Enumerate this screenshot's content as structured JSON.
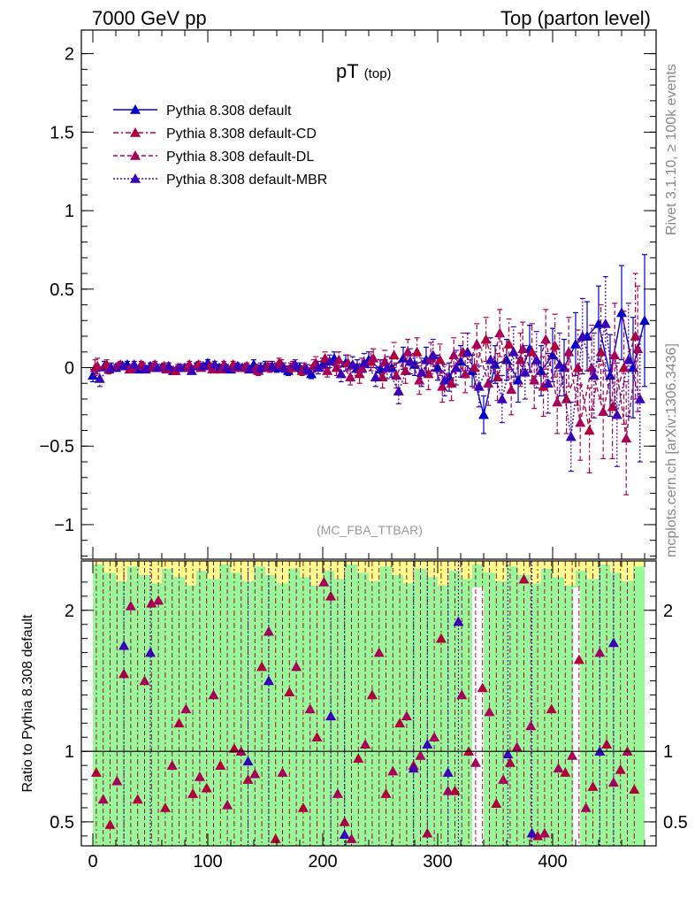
{
  "header": {
    "left": "7000 GeV pp",
    "right": "Top (parton level)"
  },
  "side_labels": {
    "rivet": "Rivet 3.1.10, ≥ 100k events",
    "mcplots": "mcplots.cern.ch [arXiv:1306.3436]"
  },
  "watermark": "(MC_FBA_TTBAR)",
  "colors": {
    "default": "#0000cc",
    "cd": "#b0003c",
    "dl": "#a8005a",
    "mbr": "#3a00b8",
    "band_green": "#98f898",
    "band_yellow": "#ffff8c"
  },
  "chart_data": [
    {
      "type": "scatter",
      "panel": "main",
      "title": "pT",
      "title_sub": "(top)",
      "xlim": [
        -10,
        490
      ],
      "ylim": [
        -1.22,
        2.15
      ],
      "y_ticks": [
        2,
        1.5,
        1,
        0.5,
        0,
        -0.5,
        -1
      ],
      "y_tick_labels": [
        "2",
        "1.5",
        "1",
        "0.5",
        "0",
        "−0.5",
        "−1"
      ],
      "legend": [
        {
          "name": "Pythia 8.308 default",
          "style": "solid",
          "color_key": "default"
        },
        {
          "name": "Pythia 8.308 default-CD",
          "style": "dashdot",
          "color_key": "cd"
        },
        {
          "name": "Pythia 8.308 default-DL",
          "style": "dashed",
          "color_key": "dl"
        },
        {
          "name": "Pythia 8.308 default-MBR",
          "style": "dotted",
          "color_key": "mbr"
        }
      ],
      "series": [
        {
          "name": "Pythia 8.308 default",
          "x": [
            0,
            10,
            20,
            30,
            40,
            50,
            60,
            70,
            80,
            90,
            100,
            110,
            120,
            130,
            140,
            150,
            160,
            170,
            180,
            190,
            200,
            210,
            220,
            230,
            240,
            250,
            260,
            270,
            280,
            290,
            300,
            310,
            320,
            330,
            340,
            350,
            360,
            370,
            380,
            390,
            400,
            410,
            420,
            430,
            440,
            450,
            460,
            470,
            480
          ],
          "y": [
            -0.05,
            0.01,
            0.0,
            0.02,
            -0.01,
            0.01,
            0.0,
            -0.02,
            0.0,
            0.01,
            0.03,
            0.0,
            -0.01,
            0.0,
            0.02,
            0.01,
            0.0,
            -0.02,
            0.0,
            -0.04,
            0.02,
            0.06,
            0.03,
            0.0,
            0.05,
            -0.01,
            0.0,
            0.06,
            0.02,
            0.05,
            0.0,
            -0.06,
            0.04,
            -0.02,
            -0.3,
            0.02,
            0.05,
            -0.08,
            0.12,
            -0.02,
            0.08,
            0.0,
            0.15,
            0.2,
            0.28,
            -0.05,
            0.35,
            0.0,
            0.3
          ],
          "err": [
            0.04,
            0.03,
            0.02,
            0.02,
            0.02,
            0.02,
            0.02,
            0.02,
            0.02,
            0.02,
            0.02,
            0.02,
            0.02,
            0.02,
            0.03,
            0.03,
            0.03,
            0.03,
            0.03,
            0.03,
            0.04,
            0.04,
            0.05,
            0.05,
            0.05,
            0.06,
            0.06,
            0.07,
            0.07,
            0.08,
            0.08,
            0.09,
            0.1,
            0.1,
            0.12,
            0.12,
            0.13,
            0.14,
            0.15,
            0.16,
            0.17,
            0.18,
            0.2,
            0.22,
            0.24,
            0.26,
            0.3,
            0.32,
            0.42
          ]
        },
        {
          "name": "Pythia 8.308 default-CD",
          "x": [
            2,
            12,
            22,
            32,
            42,
            52,
            62,
            72,
            82,
            92,
            102,
            112,
            122,
            132,
            142,
            152,
            162,
            172,
            182,
            192,
            202,
            212,
            222,
            232,
            242,
            252,
            262,
            272,
            282,
            292,
            302,
            312,
            322,
            332,
            342,
            352,
            362,
            372,
            382,
            392,
            402,
            412,
            422,
            432,
            442,
            452,
            462,
            472
          ],
          "y": [
            0.0,
            0.02,
            0.01,
            -0.01,
            0.02,
            0.0,
            0.01,
            -0.02,
            0.0,
            0.02,
            0.01,
            -0.01,
            0.02,
            0.0,
            -0.01,
            0.01,
            0.03,
            0.0,
            -0.02,
            0.01,
            0.06,
            0.0,
            0.03,
            -0.04,
            0.04,
            -0.06,
            0.08,
            -0.02,
            0.1,
            -0.04,
            0.05,
            -0.1,
            0.1,
            0.0,
            0.18,
            -0.06,
            0.15,
            0.05,
            0.1,
            -0.12,
            0.14,
            -0.2,
            0.0,
            -0.4,
            0.1,
            -0.25,
            0.0,
            0.2
          ],
          "err": [
            0.05,
            0.03,
            0.02,
            0.02,
            0.02,
            0.02,
            0.02,
            0.02,
            0.02,
            0.02,
            0.02,
            0.02,
            0.02,
            0.02,
            0.03,
            0.03,
            0.03,
            0.03,
            0.03,
            0.04,
            0.04,
            0.05,
            0.05,
            0.06,
            0.06,
            0.07,
            0.08,
            0.08,
            0.09,
            0.1,
            0.1,
            0.11,
            0.12,
            0.13,
            0.14,
            0.15,
            0.16,
            0.17,
            0.18,
            0.19,
            0.2,
            0.22,
            0.24,
            0.27,
            0.3,
            0.33,
            0.36,
            0.4
          ]
        },
        {
          "name": "Pythia 8.308 default-DL",
          "x": [
            4,
            14,
            24,
            34,
            44,
            54,
            64,
            74,
            84,
            94,
            104,
            114,
            124,
            134,
            144,
            154,
            164,
            174,
            184,
            194,
            204,
            214,
            224,
            234,
            244,
            254,
            264,
            274,
            284,
            294,
            304,
            314,
            324,
            334,
            344,
            354,
            364,
            374,
            384,
            394,
            404,
            414,
            424,
            434,
            444,
            454,
            464,
            474
          ],
          "y": [
            0.01,
            -0.01,
            0.02,
            0.0,
            0.01,
            0.02,
            -0.01,
            0.0,
            0.02,
            0.0,
            -0.01,
            0.02,
            0.0,
            0.01,
            -0.02,
            0.0,
            0.02,
            0.01,
            0.0,
            0.03,
            -0.02,
            0.05,
            -0.06,
            0.0,
            0.06,
            0.04,
            -0.05,
            0.1,
            -0.08,
            0.06,
            -0.12,
            0.08,
            -0.04,
            0.15,
            -0.1,
            0.22,
            -0.14,
            0.12,
            -0.08,
            0.18,
            -0.22,
            0.1,
            -0.35,
            0.0,
            -0.28,
            0.08,
            -0.45,
            0.12
          ],
          "err": [
            0.05,
            0.03,
            0.02,
            0.02,
            0.02,
            0.02,
            0.02,
            0.02,
            0.02,
            0.02,
            0.02,
            0.02,
            0.02,
            0.02,
            0.03,
            0.03,
            0.03,
            0.03,
            0.03,
            0.04,
            0.04,
            0.05,
            0.05,
            0.06,
            0.06,
            0.07,
            0.08,
            0.08,
            0.09,
            0.1,
            0.1,
            0.11,
            0.12,
            0.13,
            0.14,
            0.15,
            0.16,
            0.17,
            0.18,
            0.19,
            0.2,
            0.22,
            0.24,
            0.27,
            0.3,
            0.33,
            0.36,
            0.4
          ]
        },
        {
          "name": "Pythia 8.308 default-MBR",
          "x": [
            6,
            16,
            26,
            36,
            46,
            56,
            66,
            76,
            86,
            96,
            106,
            116,
            126,
            136,
            146,
            156,
            166,
            176,
            186,
            196,
            206,
            216,
            226,
            236,
            246,
            256,
            266,
            276,
            286,
            296,
            306,
            316,
            326,
            336,
            346,
            356,
            366,
            376,
            386,
            396,
            406,
            416,
            426,
            436,
            446,
            456,
            466,
            476
          ],
          "y": [
            -0.07,
            0.0,
            0.01,
            0.02,
            -0.01,
            0.0,
            0.01,
            0.0,
            -0.02,
            0.01,
            0.02,
            0.0,
            0.01,
            -0.01,
            0.0,
            0.01,
            0.0,
            0.02,
            -0.01,
            0.0,
            0.04,
            -0.04,
            0.02,
            0.03,
            -0.06,
            0.0,
            -0.15,
            0.04,
            -0.03,
            0.08,
            -0.08,
            0.0,
            0.1,
            -0.12,
            0.05,
            -0.2,
            0.1,
            -0.03,
            0.05,
            -0.1,
            0.02,
            -0.44,
            0.2,
            -0.05,
            0.28,
            -0.3,
            0.05,
            -0.2
          ],
          "err": [
            0.05,
            0.03,
            0.02,
            0.02,
            0.02,
            0.02,
            0.02,
            0.02,
            0.02,
            0.02,
            0.02,
            0.02,
            0.02,
            0.02,
            0.03,
            0.03,
            0.03,
            0.03,
            0.03,
            0.04,
            0.04,
            0.05,
            0.05,
            0.06,
            0.06,
            0.07,
            0.08,
            0.08,
            0.09,
            0.1,
            0.1,
            0.11,
            0.12,
            0.13,
            0.14,
            0.15,
            0.16,
            0.17,
            0.18,
            0.19,
            0.2,
            0.22,
            0.24,
            0.27,
            0.3,
            0.33,
            0.36,
            0.4
          ]
        }
      ]
    },
    {
      "type": "scatter",
      "panel": "ratio",
      "ylabel": "Ratio to Pythia 8.308 default",
      "xlim": [
        -10,
        490
      ],
      "ylim": [
        0.33,
        2.35
      ],
      "x_ticks": [
        0,
        100,
        200,
        300,
        400
      ],
      "x_tick_labels": [
        "0",
        "100",
        "200",
        "300",
        "400"
      ],
      "y_ticks": [
        2,
        1,
        0.5
      ],
      "y_tick_labels": [
        "2",
        "1",
        "0.5"
      ],
      "reference_line": 1,
      "series": [
        {
          "name": "Pythia 8.308 default-CD",
          "x": [
            3,
            15,
            27,
            39,
            51,
            63,
            75,
            87,
            99,
            111,
            123,
            135,
            147,
            159,
            171,
            183,
            195,
            207,
            219,
            231,
            243,
            255,
            267,
            279,
            291,
            303,
            315,
            327,
            339,
            351,
            363,
            375,
            387,
            399,
            411,
            423,
            435,
            447,
            459,
            471
          ],
          "y": [
            0.85,
            0.48,
            1.55,
            0.66,
            2.05,
            0.6,
            1.2,
            0.7,
            0.74,
            0.9,
            1.02,
            0.8,
            1.6,
            0.38,
            1.42,
            0.6,
            1.1,
            2.1,
            0.5,
            0.95,
            1.4,
            0.7,
            1.2,
            0.9,
            0.42,
            1.8,
            0.72,
            1.0,
            1.45,
            0.63,
            0.92,
            2.22,
            0.4,
            1.3,
            0.85,
            1.65,
            0.75,
            1.05,
            0.87,
            0.73
          ]
        },
        {
          "name": "Pythia 8.308 default-DL",
          "x": [
            9,
            21,
            33,
            45,
            57,
            69,
            81,
            93,
            105,
            117,
            129,
            141,
            153,
            165,
            177,
            189,
            201,
            213,
            225,
            237,
            249,
            261,
            273,
            285,
            297,
            309,
            321,
            333,
            345,
            357,
            369,
            381,
            393,
            405,
            417,
            429,
            441,
            453,
            465
          ],
          "y": [
            0.66,
            0.79,
            2.03,
            1.5,
            2.07,
            0.9,
            1.3,
            0.82,
            1.4,
            0.62,
            1.0,
            0.84,
            1.85,
            0.85,
            1.6,
            1.3,
            2.2,
            0.7,
            0.38,
            1.05,
            1.7,
            0.86,
            1.25,
            0.97,
            1.1,
            0.72,
            1.4,
            0.92,
            1.28,
            0.8,
            1.03,
            1.18,
            0.42,
            0.88,
            0.97,
            0.6,
            1.7,
            0.78,
            1.0
          ]
        },
        {
          "name": "Pythia 8.308 default-MBR",
          "x": [
            27,
            50,
            135,
            153,
            207,
            219,
            279,
            291,
            309,
            318,
            361,
            382,
            441,
            453
          ],
          "y": [
            1.75,
            1.7,
            0.93,
            1.5,
            1.25,
            0.41,
            0.88,
            1.05,
            0.85,
            1.92,
            0.98,
            0.42,
            1.0,
            1.77
          ]
        }
      ]
    }
  ]
}
